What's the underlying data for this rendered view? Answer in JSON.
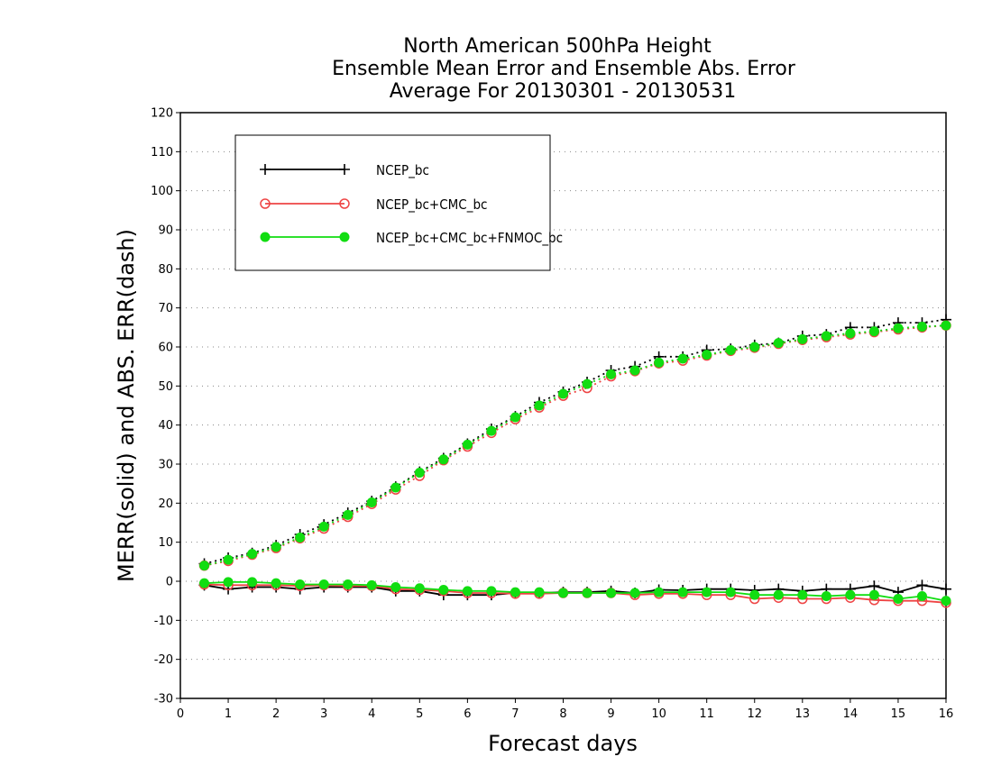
{
  "chart_data": {
    "type": "line",
    "title": [
      "North American 500hPa Height",
      "Ensemble Mean Error and Ensemble Abs. Error",
      "Average For 20130301 - 20130531"
    ],
    "xlabel": "Forecast days",
    "ylabel": "MERR(solid) and ABS. ERR(dash)",
    "xlim": [
      0,
      16
    ],
    "ylim": [
      -30,
      120
    ],
    "x_ticks": [
      0,
      1,
      2,
      3,
      4,
      5,
      6,
      7,
      8,
      9,
      10,
      11,
      12,
      13,
      14,
      15,
      16
    ],
    "y_ticks": [
      -30,
      -20,
      -10,
      0,
      10,
      20,
      30,
      40,
      50,
      60,
      70,
      80,
      90,
      100,
      110,
      120
    ],
    "grid": "horizontal dotted",
    "legend_position": "top-left",
    "x": [
      0.5,
      1,
      1.5,
      2,
      2.5,
      3,
      3.5,
      4,
      4.5,
      5,
      5.5,
      6,
      6.5,
      7,
      7.5,
      8,
      8.5,
      9,
      9.5,
      10,
      10.5,
      11,
      11.5,
      12,
      12.5,
      13,
      13.5,
      14,
      14.5,
      15,
      15.5,
      16
    ],
    "series": [
      {
        "name": "NCEP_bc",
        "color": "#000000",
        "marker": "plus",
        "merr": [
          -1,
          -2,
          -1.5,
          -1.5,
          -2,
          -1.5,
          -1.5,
          -1.5,
          -2.5,
          -2.5,
          -3.5,
          -3.5,
          -3.5,
          -3,
          -3,
          -2.8,
          -2.8,
          -2.5,
          -3,
          -2.2,
          -2.3,
          -2,
          -2,
          -2.3,
          -2,
          -2.5,
          -2,
          -2,
          -1.2,
          -2.8,
          -1,
          -2
        ],
        "abs_err": [
          4.5,
          6,
          7.2,
          9.2,
          12,
          14.5,
          17.5,
          20.5,
          24.2,
          28,
          31.5,
          35.2,
          39,
          42.2,
          45.8,
          48.5,
          51,
          54,
          55,
          57.5,
          57.5,
          59.2,
          59.5,
          60.5,
          61,
          62.8,
          63.2,
          65,
          65,
          66.2,
          66.2,
          67
        ]
      },
      {
        "name": "NCEP_bc+CMC_bc",
        "color": "#ee4444",
        "marker": "open-circle",
        "merr": [
          -0.8,
          -1,
          -1,
          -1,
          -1.2,
          -1,
          -1.2,
          -1.2,
          -2,
          -2.2,
          -2.5,
          -3,
          -3,
          -3.2,
          -3.2,
          -3,
          -3,
          -3,
          -3.5,
          -3.2,
          -3.2,
          -3.5,
          -3.5,
          -4.5,
          -4.2,
          -4.5,
          -4.5,
          -4.2,
          -4.8,
          -5,
          -5,
          -5.5
        ],
        "abs_err": [
          4,
          5.2,
          6.8,
          8.5,
          11,
          13.5,
          16.5,
          19.8,
          23.5,
          27,
          31,
          34.5,
          38,
          41.5,
          44.5,
          47.5,
          49.5,
          52.5,
          53.8,
          55.8,
          56.5,
          57.8,
          59,
          59.8,
          60.8,
          61.8,
          62.5,
          63.2,
          63.8,
          64.5,
          65,
          65.5
        ]
      },
      {
        "name": "NCEP_bc+CMC_bc+FNMOC_bc",
        "color": "#11dd11",
        "marker": "filled-circle",
        "merr": [
          -0.5,
          -0.2,
          -0.2,
          -0.5,
          -0.8,
          -0.8,
          -0.8,
          -1,
          -1.5,
          -1.8,
          -2.2,
          -2.5,
          -2.5,
          -2.8,
          -2.8,
          -3,
          -3,
          -3,
          -3,
          -2.8,
          -2.8,
          -2.8,
          -2.8,
          -3.5,
          -3.5,
          -3.5,
          -3.8,
          -3.5,
          -3.5,
          -4.5,
          -3.8,
          -5
        ],
        "abs_err": [
          4,
          5.5,
          7,
          8.8,
          11.2,
          14,
          17,
          20.2,
          24,
          27.8,
          31.2,
          35,
          38.5,
          42,
          45,
          48,
          50.5,
          53,
          54,
          56,
          57,
          58,
          59.2,
          60,
          61,
          62,
          62.8,
          63.5,
          64,
          64.8,
          65.2,
          65.5
        ]
      }
    ]
  }
}
